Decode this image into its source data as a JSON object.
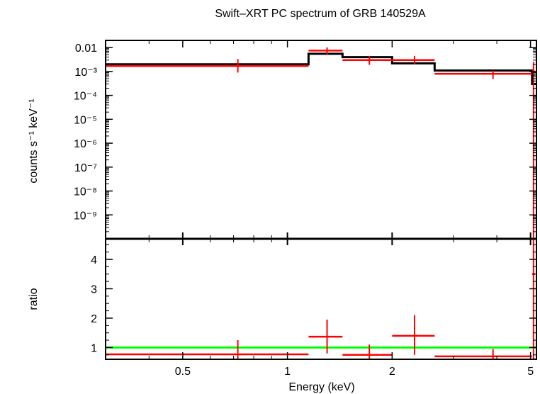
{
  "chart_data": [
    {
      "type": "line",
      "panel": "spectrum",
      "title": "Swift–XRT PC spectrum of GRB 140529A",
      "ylabel": "counts s⁻¹ keV⁻¹",
      "xlabel": "",
      "x_scale": "log",
      "y_scale": "log",
      "xlim": [
        0.3,
        5.2
      ],
      "ylim": [
        1e-10,
        0.02
      ],
      "ytick_labels": [
        {
          "value": 0.01,
          "label": "0.01"
        },
        {
          "value": 0.001,
          "label": "10⁻³"
        },
        {
          "value": 0.0001,
          "label": "10⁻⁴"
        },
        {
          "value": 1e-05,
          "label": "10⁻⁵"
        },
        {
          "value": 1e-06,
          "label": "10⁻⁶"
        },
        {
          "value": 1e-07,
          "label": "10⁻⁷"
        },
        {
          "value": 1e-08,
          "label": "10⁻⁸"
        },
        {
          "value": 1e-09,
          "label": "10⁻⁹"
        }
      ],
      "series": [
        {
          "kind": "data",
          "color": "#ff0000",
          "points": [
            {
              "x_lo": 0.3,
              "x_hi": 1.15,
              "x": 0.72,
              "y": 0.0017,
              "y_lo": 0.0009,
              "y_hi": 0.0033
            },
            {
              "x_lo": 1.15,
              "x_hi": 1.44,
              "x": 1.3,
              "y": 0.0075,
              "y_lo": 0.0052,
              "y_hi": 0.0102
            },
            {
              "x_lo": 1.44,
              "x_hi": 2.0,
              "x": 1.72,
              "y": 0.003,
              "y_lo": 0.0019,
              "y_hi": 0.0045
            },
            {
              "x_lo": 2.0,
              "x_hi": 2.65,
              "x": 2.32,
              "y": 0.003,
              "y_lo": 0.002,
              "y_hi": 0.0045
            },
            {
              "x_lo": 2.65,
              "x_hi": 5.05,
              "x": 3.9,
              "y": 0.0008,
              "y_lo": 0.0005,
              "y_hi": 0.0011
            },
            {
              "x_lo": 5.05,
              "x_hi": 5.15,
              "x": 5.1,
              "y": 0.001,
              "y_lo": 1e-10,
              "y_hi": 0.0025
            }
          ]
        },
        {
          "kind": "model",
          "color": "#000000",
          "steps": [
            {
              "x_lo": 0.3,
              "x_hi": 1.15,
              "y": 0.002
            },
            {
              "x_lo": 1.15,
              "x_hi": 1.44,
              "y": 0.0055
            },
            {
              "x_lo": 1.44,
              "x_hi": 2.0,
              "y": 0.004
            },
            {
              "x_lo": 2.0,
              "x_hi": 2.65,
              "y": 0.0022
            },
            {
              "x_lo": 2.65,
              "x_hi": 5.05,
              "y": 0.0011
            },
            {
              "x_lo": 5.05,
              "x_hi": 5.2,
              "y": 0.0003
            }
          ]
        }
      ]
    },
    {
      "type": "line",
      "panel": "ratio",
      "ylabel": "ratio",
      "xlabel": "Energy (keV)",
      "x_scale": "log",
      "y_scale": "linear",
      "xlim": [
        0.3,
        5.2
      ],
      "ylim": [
        0.6,
        4.7
      ],
      "xtick_labels": [
        {
          "value": 0.5,
          "label": "0.5"
        },
        {
          "value": 1,
          "label": "1"
        },
        {
          "value": 2,
          "label": "2"
        },
        {
          "value": 5,
          "label": "5"
        }
      ],
      "ytick_labels": [
        {
          "value": 1,
          "label": "1"
        },
        {
          "value": 2,
          "label": "2"
        },
        {
          "value": 3,
          "label": "3"
        },
        {
          "value": 4,
          "label": "4"
        }
      ],
      "reference_line": {
        "y": 1,
        "color": "#00ff00"
      },
      "series": [
        {
          "kind": "ratio",
          "color": "#ff0000",
          "points": [
            {
              "x_lo": 0.3,
              "x_hi": 1.15,
              "x": 0.72,
              "y": 0.77,
              "y_lo": 0.45,
              "y_hi": 1.25
            },
            {
              "x_lo": 1.15,
              "x_hi": 1.44,
              "x": 1.3,
              "y": 1.37,
              "y_lo": 0.8,
              "y_hi": 1.95
            },
            {
              "x_lo": 1.44,
              "x_hi": 2.0,
              "x": 1.72,
              "y": 0.75,
              "y_lo": 0.45,
              "y_hi": 1.1
            },
            {
              "x_lo": 2.0,
              "x_hi": 2.65,
              "x": 2.32,
              "y": 1.4,
              "y_lo": 0.75,
              "y_hi": 2.1
            },
            {
              "x_lo": 2.65,
              "x_hi": 5.05,
              "x": 3.9,
              "y": 0.7,
              "y_lo": 0.45,
              "y_hi": 0.95
            },
            {
              "x_lo": 5.05,
              "x_hi": 5.15,
              "x": 5.1,
              "y": 3.5,
              "y_lo": 0.6,
              "y_hi": 4.7
            }
          ]
        }
      ]
    }
  ]
}
